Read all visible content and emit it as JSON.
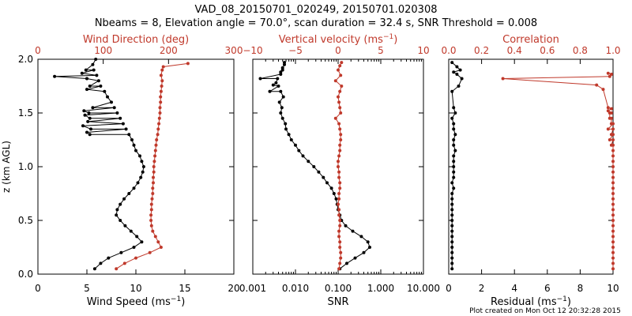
{
  "title_line1": "VAD_08_20150701_020249, 20150701.020308",
  "title_line2": "Nbeams = 8, Elevation angle = 70.0°, scan duration = 32.4 s, SNR Threshold = 0.008",
  "footer": "Plot created on Mon Oct 12 20:32:28 2015",
  "colors": {
    "black": "#000000",
    "red": "#c0392b"
  },
  "chart_data": [
    {
      "type": "scatter",
      "ylabel": "z (km AGL)",
      "ylim": [
        0,
        2
      ],
      "yticks": [
        "0.0",
        "0.5",
        "1.0",
        "1.5",
        "2.0"
      ],
      "x_bottom": {
        "label": "Wind Speed (ms",
        "label_sup": "−1",
        "label_end": ")",
        "range": [
          0,
          20
        ],
        "ticks": [
          "0",
          "5",
          "10",
          "15",
          "20"
        ]
      },
      "x_top": {
        "label": "Wind Direction (deg)",
        "range": [
          0,
          350
        ],
        "ticks": [
          "0",
          "100",
          "200",
          "300"
        ]
      },
      "series": [
        {
          "axis": "bottom",
          "color": "black",
          "x": [
            5.8,
            6.4,
            7.2,
            8.5,
            9.8,
            10.6,
            10.1,
            9.5,
            8.9,
            8.4,
            8.0,
            8.1,
            8.4,
            8.8,
            9.3,
            9.8,
            10.2,
            10.5,
            10.7,
            10.8,
            10.6,
            10.4,
            10.0,
            9.8,
            9.6,
            9.3,
            9.0,
            8.7,
            8.4,
            8.1,
            7.8,
            7.5,
            7.1,
            6.8,
            6.4,
            6.2,
            6.0,
            5.7,
            5.6,
            5.9,
            5.3,
            5.0,
            5.4,
            4.6,
            5.1,
            5.3,
            4.8,
            5.2,
            4.7,
            5.6,
            5.0,
            5.3,
            5.0,
            1.7,
            4.5,
            4.9
          ],
          "y": [
            0.05,
            0.1,
            0.15,
            0.2,
            0.25,
            0.3,
            0.35,
            0.4,
            0.45,
            0.5,
            0.55,
            0.6,
            0.65,
            0.7,
            0.75,
            0.8,
            0.85,
            0.9,
            0.95,
            1.0,
            1.05,
            1.1,
            1.15,
            1.2,
            1.25,
            1.3,
            1.35,
            1.4,
            1.45,
            1.5,
            1.55,
            1.6,
            1.65,
            1.7,
            1.75,
            1.8,
            1.85,
            1.9,
            1.95,
            2.0,
            1.3,
            1.32,
            1.35,
            1.38,
            1.42,
            1.45,
            1.48,
            1.5,
            1.52,
            1.55,
            1.72,
            1.75,
            1.82,
            1.84,
            1.87,
            1.9
          ]
        },
        {
          "axis": "top",
          "color": "red",
          "x": [
            140,
            155,
            175,
            200,
            220,
            215,
            210,
            205,
            203,
            202,
            202,
            203,
            203,
            204,
            205,
            205,
            206,
            206,
            207,
            207,
            208,
            209,
            210,
            211,
            212,
            214,
            215,
            216,
            217,
            218,
            218,
            219,
            219,
            220,
            221,
            222,
            220,
            222,
            224,
            268
          ],
          "y": [
            0.05,
            0.1,
            0.15,
            0.2,
            0.25,
            0.3,
            0.35,
            0.4,
            0.45,
            0.5,
            0.55,
            0.6,
            0.65,
            0.7,
            0.75,
            0.8,
            0.85,
            0.9,
            0.95,
            1.0,
            1.05,
            1.1,
            1.15,
            1.2,
            1.25,
            1.3,
            1.35,
            1.4,
            1.45,
            1.5,
            1.55,
            1.6,
            1.65,
            1.7,
            1.75,
            1.8,
            1.85,
            1.9,
            1.93,
            1.96
          ]
        }
      ]
    },
    {
      "type": "scatter",
      "ylim": [
        0,
        2
      ],
      "x_bottom": {
        "label": "SNR",
        "scale": "log",
        "range": [
          0.001,
          10
        ],
        "ticks": [
          "0.001",
          "0.010",
          "0.100",
          "1.000",
          "10.000"
        ]
      },
      "x_top": {
        "label": "Vertical velocity (ms",
        "label_sup": "−1",
        "label_end": ")",
        "range": [
          -10,
          10
        ],
        "ticks": [
          "−10",
          "−5",
          "0",
          "5",
          "10"
        ]
      },
      "series": [
        {
          "axis": "bottom",
          "color": "black",
          "x": [
            0.11,
            0.16,
            0.25,
            0.4,
            0.55,
            0.5,
            0.35,
            0.22,
            0.15,
            0.12,
            0.11,
            0.1,
            0.095,
            0.09,
            0.08,
            0.07,
            0.055,
            0.045,
            0.035,
            0.027,
            0.02,
            0.015,
            0.012,
            0.01,
            0.008,
            0.007,
            0.006,
            0.0058,
            0.005,
            0.0045,
            0.0048,
            0.0042,
            0.0052,
            0.0045,
            0.004,
            0.0035,
            0.0038,
            0.0045,
            0.005,
            0.0055,
            0.0025,
            0.0015,
            0.003,
            0.0045,
            0.005,
            0.0055
          ],
          "y": [
            0.05,
            0.1,
            0.15,
            0.2,
            0.25,
            0.3,
            0.35,
            0.4,
            0.45,
            0.5,
            0.55,
            0.6,
            0.65,
            0.7,
            0.75,
            0.8,
            0.85,
            0.9,
            0.95,
            1.0,
            1.05,
            1.1,
            1.15,
            1.2,
            1.25,
            1.3,
            1.35,
            1.4,
            1.45,
            1.5,
            1.55,
            1.6,
            1.65,
            1.7,
            1.75,
            1.78,
            1.82,
            1.86,
            1.9,
            1.95,
            1.7,
            1.82,
            1.76,
            1.88,
            1.92,
            1.97
          ]
        },
        {
          "axis": "top",
          "color": "red",
          "x": [
            0.1,
            0.2,
            0.3,
            0.3,
            0.2,
            0.2,
            0.1,
            0.1,
            0.2,
            0.2,
            0.1,
            0.1,
            0.0,
            0.1,
            0.1,
            0.2,
            0.2,
            0.1,
            0.1,
            0.0,
            0.0,
            0.1,
            0.2,
            0.2,
            0.3,
            0.3,
            0.2,
            0.1,
            -0.3,
            0.3,
            0.2,
            0.1,
            0.0,
            0.2,
            0.4,
            -0.3,
            0.3,
            0.0,
            0.2,
            0.4
          ],
          "y": [
            0.05,
            0.1,
            0.15,
            0.2,
            0.25,
            0.3,
            0.35,
            0.4,
            0.45,
            0.5,
            0.55,
            0.6,
            0.65,
            0.7,
            0.75,
            0.8,
            0.85,
            0.9,
            0.95,
            1.0,
            1.05,
            1.1,
            1.15,
            1.2,
            1.25,
            1.3,
            1.35,
            1.4,
            1.45,
            1.5,
            1.55,
            1.6,
            1.65,
            1.7,
            1.75,
            1.8,
            1.85,
            1.9,
            1.94,
            1.97
          ]
        }
      ]
    },
    {
      "type": "scatter",
      "ylim": [
        0,
        2
      ],
      "x_bottom": {
        "label": "Residual (ms",
        "label_sup": "−1",
        "label_end": ")",
        "range": [
          0,
          10
        ],
        "ticks": [
          "0",
          "2",
          "4",
          "6",
          "8",
          "10"
        ]
      },
      "x_top": {
        "label": "Correlation",
        "range": [
          0,
          1
        ],
        "ticks": [
          "0.0",
          "0.2",
          "0.4",
          "0.6",
          "0.8",
          "1.0"
        ]
      },
      "series": [
        {
          "axis": "bottom",
          "color": "black",
          "x": [
            0.2,
            0.2,
            0.2,
            0.2,
            0.2,
            0.2,
            0.2,
            0.2,
            0.2,
            0.2,
            0.2,
            0.2,
            0.2,
            0.2,
            0.2,
            0.3,
            0.2,
            0.3,
            0.3,
            0.3,
            0.3,
            0.3,
            0.4,
            0.3,
            0.3,
            0.4,
            0.3,
            0.3,
            0.2,
            0.4,
            0.3,
            0.2,
            0.6,
            0.8,
            0.5,
            0.3,
            0.7,
            0.5,
            0.2
          ],
          "y": [
            0.05,
            0.1,
            0.15,
            0.2,
            0.25,
            0.3,
            0.35,
            0.4,
            0.45,
            0.5,
            0.55,
            0.6,
            0.65,
            0.7,
            0.75,
            0.8,
            0.85,
            0.9,
            0.95,
            1.0,
            1.05,
            1.1,
            1.15,
            1.2,
            1.25,
            1.3,
            1.35,
            1.4,
            1.45,
            1.5,
            1.55,
            1.7,
            1.75,
            1.82,
            1.86,
            1.88,
            1.9,
            1.93,
            1.97
          ]
        },
        {
          "axis": "top",
          "color": "red",
          "x": [
            1.0,
            1.0,
            1.0,
            1.0,
            1.0,
            1.0,
            1.0,
            1.0,
            1.0,
            1.0,
            1.0,
            1.0,
            1.0,
            1.0,
            1.0,
            1.0,
            1.0,
            1.0,
            1.0,
            1.0,
            1.0,
            1.0,
            1.0,
            1.0,
            1.0,
            1.0,
            1.0,
            1.0,
            0.99,
            0.98,
            0.97,
            0.99,
            0.98,
            0.99,
            0.97,
            0.99,
            0.98,
            0.99,
            0.97,
            0.99,
            0.98,
            0.33,
            0.99,
            0.9,
            0.94,
            0.97
          ],
          "y": [
            0.05,
            0.1,
            0.15,
            0.2,
            0.25,
            0.3,
            0.35,
            0.4,
            0.45,
            0.5,
            0.55,
            0.6,
            0.65,
            0.7,
            0.75,
            0.8,
            0.85,
            0.9,
            0.95,
            1.0,
            1.05,
            1.1,
            1.15,
            1.2,
            1.25,
            1.3,
            1.35,
            1.4,
            1.45,
            1.5,
            1.55,
            1.2,
            1.25,
            1.3,
            1.35,
            1.4,
            1.45,
            1.5,
            1.52,
            1.54,
            1.84,
            1.82,
            1.86,
            1.76,
            1.72,
            1.87
          ]
        }
      ]
    }
  ]
}
